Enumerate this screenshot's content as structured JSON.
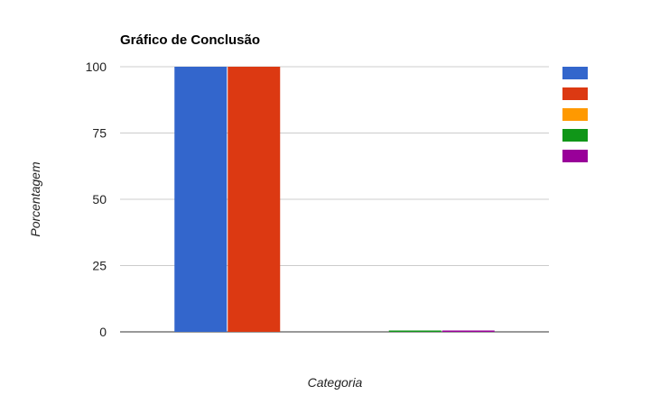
{
  "chart_data": {
    "type": "bar",
    "title": "Gráfico de Conclusão",
    "xlabel": "Categoria",
    "ylabel": "Porcentagem",
    "ylim": [
      0,
      100
    ],
    "y_ticks": [
      "0",
      "25",
      "50",
      "75",
      "100"
    ],
    "y_tick_values": [
      0,
      25,
      50,
      75,
      100
    ],
    "grid": true,
    "legend_position": "right",
    "groups": [
      {
        "values": [
          100,
          100
        ]
      },
      {
        "values": [
          0.5,
          0.5
        ]
      }
    ],
    "series_colors": [
      "#3366cc",
      "#dc3912",
      "#ff9900",
      "#109618",
      "#990099"
    ],
    "group_series": [
      [
        0,
        1
      ],
      [
        3,
        4
      ]
    ]
  }
}
